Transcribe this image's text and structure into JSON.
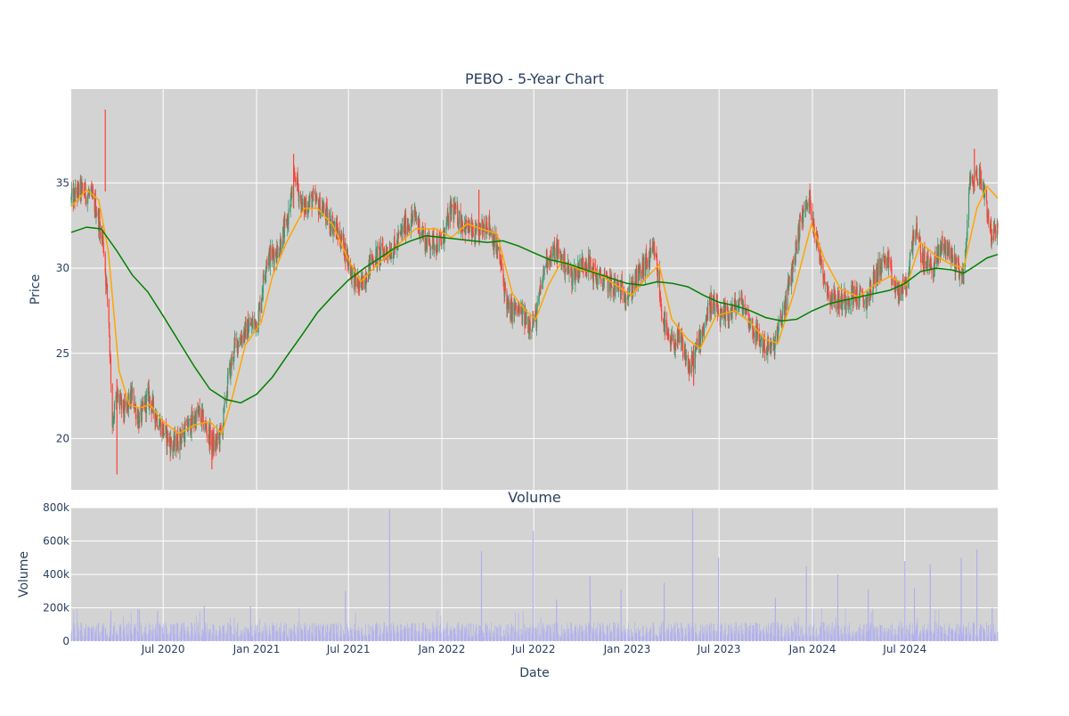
{
  "chart_data": [
    {
      "type": "candlestick",
      "title": "PEBO - 5-Year Chart",
      "ylabel": "Price",
      "ylim": [
        17,
        40.5
      ],
      "yticks": [
        20,
        25,
        30,
        35
      ],
      "xlim": [
        "2020-01-02",
        "2024-12-31"
      ],
      "grid": true,
      "colors": {
        "plot_bg": "#d3d3d3",
        "grid": "#ffffff",
        "up": "#3d9970",
        "down": "#ff4136",
        "ma_short": "#ffa500",
        "ma_long": "#008000"
      },
      "price_path": [
        [
          "2020-01-02",
          34.0
        ],
        [
          "2020-01-20",
          34.6
        ],
        [
          "2020-02-10",
          34.2
        ],
        [
          "2020-02-20",
          33.5
        ],
        [
          "2020-03-05",
          31.5
        ],
        [
          "2020-03-16",
          27.0
        ],
        [
          "2020-03-23",
          21.0
        ],
        [
          "2020-04-01",
          22.5
        ],
        [
          "2020-04-15",
          21.5
        ],
        [
          "2020-05-01",
          22.5
        ],
        [
          "2020-05-15",
          21.0
        ],
        [
          "2020-06-01",
          22.5
        ],
        [
          "2020-06-15",
          21.5
        ],
        [
          "2020-07-01",
          20.5
        ],
        [
          "2020-07-20",
          19.5
        ],
        [
          "2020-08-15",
          20.5
        ],
        [
          "2020-09-10",
          21.5
        ],
        [
          "2020-09-25",
          20.5
        ],
        [
          "2020-10-10",
          19.5
        ],
        [
          "2020-10-25",
          20.5
        ],
        [
          "2020-11-06",
          23.5
        ],
        [
          "2020-11-20",
          25.5
        ],
        [
          "2020-12-15",
          26.5
        ],
        [
          "2021-01-04",
          27.0
        ],
        [
          "2021-01-20",
          30.5
        ],
        [
          "2021-02-10",
          31.0
        ],
        [
          "2021-03-01",
          32.5
        ],
        [
          "2021-03-18",
          35.5
        ],
        [
          "2021-04-01",
          33.5
        ],
        [
          "2021-04-20",
          34.0
        ],
        [
          "2021-05-10",
          33.5
        ],
        [
          "2021-06-01",
          32.5
        ],
        [
          "2021-06-20",
          31.5
        ],
        [
          "2021-07-10",
          29.5
        ],
        [
          "2021-07-25",
          28.8
        ],
        [
          "2021-08-15",
          30.5
        ],
        [
          "2021-09-10",
          31.0
        ],
        [
          "2021-10-01",
          31.2
        ],
        [
          "2021-10-20",
          32.5
        ],
        [
          "2021-11-10",
          33.0
        ],
        [
          "2021-12-01",
          31.5
        ],
        [
          "2022-01-01",
          31.5
        ],
        [
          "2022-01-20",
          33.5
        ],
        [
          "2022-02-15",
          32.5
        ],
        [
          "2022-03-10",
          31.8
        ],
        [
          "2022-04-01",
          32.8
        ],
        [
          "2022-04-25",
          30.5
        ],
        [
          "2022-05-12",
          27.5
        ],
        [
          "2022-06-01",
          27.5
        ],
        [
          "2022-06-20",
          26.8
        ],
        [
          "2022-07-05",
          27.0
        ],
        [
          "2022-07-25",
          30.5
        ],
        [
          "2022-08-15",
          31.0
        ],
        [
          "2022-09-15",
          29.5
        ],
        [
          "2022-10-10",
          30.5
        ],
        [
          "2022-11-01",
          29.5
        ],
        [
          "2022-12-01",
          29.0
        ],
        [
          "2023-01-03",
          28.5
        ],
        [
          "2023-02-01",
          30.0
        ],
        [
          "2023-02-25",
          31.0
        ],
        [
          "2023-03-10",
          27.5
        ],
        [
          "2023-03-24",
          25.5
        ],
        [
          "2023-04-15",
          25.8
        ],
        [
          "2023-05-05",
          24.0
        ],
        [
          "2023-05-20",
          25.5
        ],
        [
          "2023-06-15",
          28.0
        ],
        [
          "2023-07-05",
          27.0
        ],
        [
          "2023-07-25",
          27.5
        ],
        [
          "2023-08-15",
          28.0
        ],
        [
          "2023-09-05",
          26.5
        ],
        [
          "2023-09-25",
          25.5
        ],
        [
          "2023-10-15",
          25.2
        ],
        [
          "2023-11-01",
          27.0
        ],
        [
          "2023-11-20",
          29.5
        ],
        [
          "2023-12-10",
          33.0
        ],
        [
          "2023-12-27",
          34.0
        ],
        [
          "2024-01-10",
          31.5
        ],
        [
          "2024-02-01",
          28.5
        ],
        [
          "2024-02-25",
          28.0
        ],
        [
          "2024-03-20",
          28.5
        ],
        [
          "2024-04-15",
          28.0
        ],
        [
          "2024-05-10",
          30.0
        ],
        [
          "2024-05-25",
          30.5
        ],
        [
          "2024-06-15",
          28.5
        ],
        [
          "2024-07-05",
          29.0
        ],
        [
          "2024-07-20",
          32.5
        ],
        [
          "2024-08-05",
          30.5
        ],
        [
          "2024-08-25",
          30.0
        ],
        [
          "2024-09-15",
          31.5
        ],
        [
          "2024-10-05",
          30.5
        ],
        [
          "2024-10-25",
          29.5
        ],
        [
          "2024-11-06",
          35.0
        ],
        [
          "2024-11-25",
          35.5
        ],
        [
          "2024-12-05",
          34.5
        ],
        [
          "2024-12-18",
          32.0
        ],
        [
          "2024-12-31",
          32.0
        ]
      ],
      "moving_average_short": [
        [
          "2020-01-02",
          33.6
        ],
        [
          "2020-02-01",
          34.6
        ],
        [
          "2020-02-25",
          34.0
        ],
        [
          "2020-03-15",
          31.0
        ],
        [
          "2020-04-05",
          24.0
        ],
        [
          "2020-04-25",
          22.0
        ],
        [
          "2020-05-15",
          21.8
        ],
        [
          "2020-06-05",
          22.0
        ],
        [
          "2020-07-01",
          21.0
        ],
        [
          "2020-08-01",
          20.3
        ],
        [
          "2020-09-01",
          20.8
        ],
        [
          "2020-10-01",
          21.0
        ],
        [
          "2020-10-25",
          20.3
        ],
        [
          "2020-11-15",
          22.5
        ],
        [
          "2020-12-10",
          25.5
        ],
        [
          "2021-01-10",
          26.8
        ],
        [
          "2021-02-01",
          29.5
        ],
        [
          "2021-03-01",
          31.5
        ],
        [
          "2021-04-05",
          33.5
        ],
        [
          "2021-05-01",
          33.5
        ],
        [
          "2021-06-01",
          32.5
        ],
        [
          "2021-07-01",
          30.5
        ],
        [
          "2021-07-25",
          29.2
        ],
        [
          "2021-08-20",
          30.0
        ],
        [
          "2021-10-01",
          31.2
        ],
        [
          "2021-11-10",
          32.3
        ],
        [
          "2021-12-20",
          32.3
        ],
        [
          "2022-01-20",
          31.8
        ],
        [
          "2022-02-20",
          32.6
        ],
        [
          "2022-03-20",
          32.3
        ],
        [
          "2022-04-20",
          32.0
        ],
        [
          "2022-05-20",
          28.5
        ],
        [
          "2022-06-15",
          27.5
        ],
        [
          "2022-07-05",
          27.0
        ],
        [
          "2022-07-30",
          29.0
        ],
        [
          "2022-08-25",
          30.4
        ],
        [
          "2022-09-30",
          29.9
        ],
        [
          "2022-10-30",
          29.8
        ],
        [
          "2022-12-10",
          29.0
        ],
        [
          "2023-01-10",
          28.4
        ],
        [
          "2023-02-10",
          29.5
        ],
        [
          "2023-03-05",
          30.2
        ],
        [
          "2023-03-30",
          27.0
        ],
        [
          "2023-05-01",
          25.8
        ],
        [
          "2023-05-25",
          25.3
        ],
        [
          "2023-06-25",
          27.2
        ],
        [
          "2023-08-01",
          27.5
        ],
        [
          "2023-09-01",
          26.8
        ],
        [
          "2023-10-01",
          25.8
        ],
        [
          "2023-10-25",
          25.6
        ],
        [
          "2023-11-25",
          28.5
        ],
        [
          "2023-12-30",
          32.6
        ],
        [
          "2024-01-25",
          30.5
        ],
        [
          "2024-02-25",
          28.8
        ],
        [
          "2024-04-01",
          28.3
        ],
        [
          "2024-05-01",
          29.0
        ],
        [
          "2024-06-01",
          29.5
        ],
        [
          "2024-07-05",
          29.0
        ],
        [
          "2024-08-01",
          31.5
        ],
        [
          "2024-09-01",
          30.7
        ],
        [
          "2024-10-01",
          30.2
        ],
        [
          "2024-10-25",
          30.0
        ],
        [
          "2024-11-20",
          33.5
        ],
        [
          "2024-12-10",
          34.8
        ],
        [
          "2024-12-31",
          34.1
        ]
      ],
      "moving_average_long": [
        [
          "2020-01-02",
          32.1
        ],
        [
          "2020-02-01",
          32.4
        ],
        [
          "2020-03-01",
          32.3
        ],
        [
          "2020-04-01",
          31.0
        ],
        [
          "2020-05-01",
          29.6
        ],
        [
          "2020-06-01",
          28.6
        ],
        [
          "2020-07-01",
          27.2
        ],
        [
          "2020-08-01",
          25.7
        ],
        [
          "2020-09-01",
          24.2
        ],
        [
          "2020-10-01",
          22.9
        ],
        [
          "2020-11-01",
          22.3
        ],
        [
          "2020-12-01",
          22.1
        ],
        [
          "2021-01-01",
          22.6
        ],
        [
          "2021-02-01",
          23.6
        ],
        [
          "2021-03-01",
          24.8
        ],
        [
          "2021-04-01",
          26.1
        ],
        [
          "2021-05-01",
          27.4
        ],
        [
          "2021-06-01",
          28.4
        ],
        [
          "2021-07-01",
          29.3
        ],
        [
          "2021-08-01",
          30.0
        ],
        [
          "2021-09-01",
          30.6
        ],
        [
          "2021-10-01",
          31.2
        ],
        [
          "2021-11-01",
          31.6
        ],
        [
          "2021-12-01",
          31.9
        ],
        [
          "2022-01-01",
          31.8
        ],
        [
          "2022-02-01",
          31.7
        ],
        [
          "2022-03-01",
          31.6
        ],
        [
          "2022-04-01",
          31.5
        ],
        [
          "2022-05-01",
          31.6
        ],
        [
          "2022-06-01",
          31.3
        ],
        [
          "2022-07-01",
          30.9
        ],
        [
          "2022-08-01",
          30.5
        ],
        [
          "2022-09-01",
          30.3
        ],
        [
          "2022-10-01",
          30.0
        ],
        [
          "2022-11-01",
          29.7
        ],
        [
          "2022-12-01",
          29.4
        ],
        [
          "2023-01-01",
          29.1
        ],
        [
          "2023-02-01",
          29.0
        ],
        [
          "2023-03-01",
          29.2
        ],
        [
          "2023-04-01",
          29.1
        ],
        [
          "2023-05-01",
          28.9
        ],
        [
          "2023-06-01",
          28.4
        ],
        [
          "2023-07-01",
          28.0
        ],
        [
          "2023-08-01",
          27.8
        ],
        [
          "2023-09-01",
          27.5
        ],
        [
          "2023-10-01",
          27.1
        ],
        [
          "2023-11-01",
          26.9
        ],
        [
          "2023-12-01",
          27.0
        ],
        [
          "2024-01-01",
          27.5
        ],
        [
          "2024-02-01",
          27.9
        ],
        [
          "2024-03-01",
          28.1
        ],
        [
          "2024-04-01",
          28.3
        ],
        [
          "2024-05-01",
          28.5
        ],
        [
          "2024-06-01",
          28.7
        ],
        [
          "2024-07-01",
          29.1
        ],
        [
          "2024-08-01",
          29.8
        ],
        [
          "2024-09-01",
          30.0
        ],
        [
          "2024-10-01",
          29.9
        ],
        [
          "2024-10-25",
          29.7
        ],
        [
          "2024-11-15",
          30.1
        ],
        [
          "2024-12-10",
          30.6
        ],
        [
          "2024-12-31",
          30.8
        ]
      ]
    },
    {
      "type": "bar",
      "title": "Volume",
      "ylabel": "Volume",
      "xlabel": "Date",
      "ylim": [
        0,
        800000
      ],
      "yticks": [
        0,
        200000,
        400000,
        600000,
        800000
      ],
      "ytick_labels": [
        "0",
        "200k",
        "400k",
        "600k",
        "800k"
      ],
      "xticks": [
        "2020-07-01",
        "2021-01-01",
        "2021-07-01",
        "2022-01-01",
        "2022-07-01",
        "2023-01-01",
        "2023-07-01",
        "2024-01-01",
        "2024-07-01"
      ],
      "xtick_labels": [
        "Jul 2020",
        "Jan 2021",
        "Jul 2021",
        "Jan 2022",
        "Jul 2022",
        "Jan 2023",
        "Jul 2023",
        "Jan 2024",
        "Jul 2024"
      ],
      "color": "#b0b0ee",
      "baseline_level": 70000,
      "volume_spikes": [
        [
          "2020-03-20",
          180000
        ],
        [
          "2020-05-15",
          190000
        ],
        [
          "2020-06-20",
          180000
        ],
        [
          "2020-09-20",
          210000
        ],
        [
          "2020-12-20",
          210000
        ],
        [
          "2021-06-25",
          300000
        ],
        [
          "2021-09-20",
          790000
        ],
        [
          "2022-03-20",
          540000
        ],
        [
          "2022-06-30",
          660000
        ],
        [
          "2022-08-15",
          250000
        ],
        [
          "2022-10-20",
          390000
        ],
        [
          "2022-12-20",
          310000
        ],
        [
          "2023-03-15",
          350000
        ],
        [
          "2023-05-10",
          790000
        ],
        [
          "2023-06-30",
          500000
        ],
        [
          "2023-10-20",
          260000
        ],
        [
          "2023-12-20",
          450000
        ],
        [
          "2024-02-20",
          400000
        ],
        [
          "2024-04-20",
          310000
        ],
        [
          "2024-07-01",
          480000
        ],
        [
          "2024-07-20",
          320000
        ],
        [
          "2024-08-20",
          460000
        ],
        [
          "2024-10-20",
          500000
        ],
        [
          "2024-11-20",
          550000
        ],
        [
          "2024-12-20",
          200000
        ]
      ]
    }
  ]
}
